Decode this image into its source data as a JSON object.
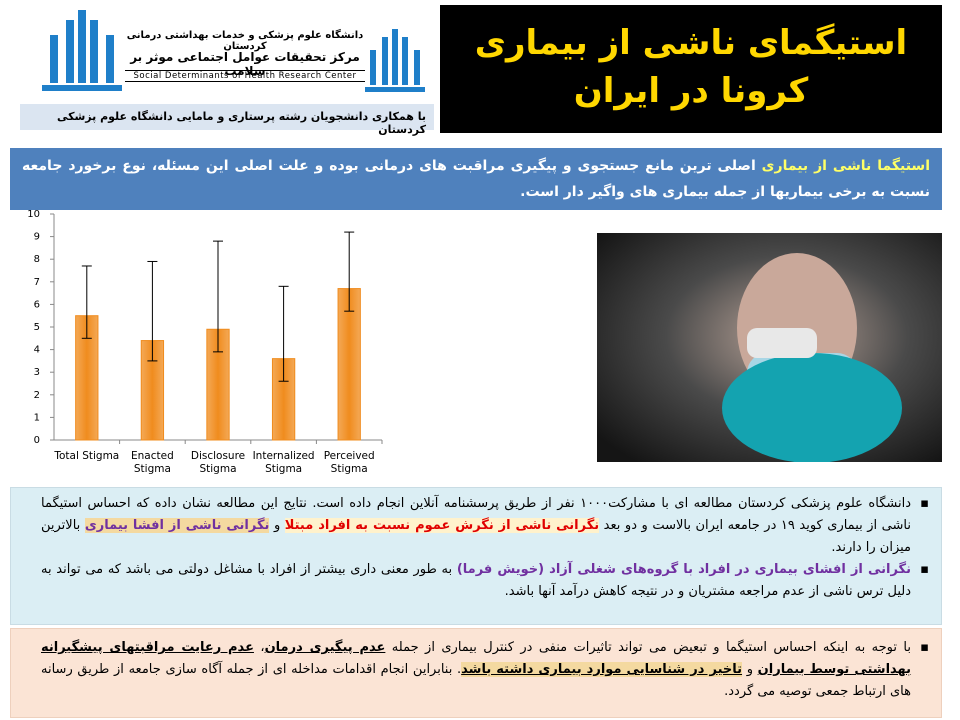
{
  "header": {
    "university": "دانشگاه علوم پزشکی و خدمات بهداشتی درمانی کردستان",
    "center_fa": "مرکز تحقیقات عوامل اجتماعی موثر بر سلامت",
    "center_en": "Social Determinants of Health Research Center",
    "collaboration": "با همکاری دانشجویان رشته پرستاری و مامایی دانشگاه علوم پزشکی کردستان",
    "title": "استیگمای ناشی از بیماری کرونا در ایران"
  },
  "intro": [
    "استیگما ناشی از بیماری",
    " اصلی ترین مانع جستجوی و پیگیری مراقبت های درمانی بوده و علت اصلی این مسئله، نوع برخورد جامعه نسبت به برخی بیماریها از جمله بیماری های واگیر دار است."
  ],
  "findings": [
    [
      "دانشگاه علوم پزشکی کردستان مطالعه ای با مشارکت۱۰۰۰ نفر از طریق پرسشنامه آنلاین انجام داده است. نتایج این مطالعه نشان داده که احساس استیگما ناشی از بیماری کوید ۱۹ در جامعه ایران بالاست و دو بعد ",
      "نگرانی ناشی از نگرش عموم نسبت به افراد مبتلا",
      " و ",
      "نگرانی ناشی از افشا بیماری",
      " بالاترین میزان را دارند."
    ],
    [
      "نگرانی از افشای بیماری در افراد با گروه‌های شغلی آزاد (خویش فرما)",
      " به طور معنی داری بیشتر از افراد با مشاغل دولتی می باشد که می تواند به دلیل ترس ناشی از عدم مراجعه مشتریان و در نتیجه کاهش درآمد آنها باشد."
    ]
  ],
  "recommendation": [
    "با توجه به اینکه احساس استیگما و تبعیض می تواند تاثیرات منفی در کنترل بیماری از جمله ",
    "عدم پیگیری درمان",
    "، ",
    "عدم رعایت مراقبتهای پیشگیرانه بهداشتی توسط بیماران",
    " و ",
    "تاخیر در شناسایی موارد بیماری داشته باشد",
    ". بنابراین انجام اقدامات مداخله ای از جمله آگاه سازی جامعه از طریق رسانه های ارتباط جمعی توصیه می گردد."
  ],
  "chart_data": {
    "type": "bar",
    "categories": [
      "Total Stigma",
      "Enacted Stigma",
      "Disclosure Stigma",
      "Internalized Stigma",
      "Perceived Stigma"
    ],
    "values": [
      5.5,
      4.4,
      4.9,
      3.6,
      6.7
    ],
    "error_plus": [
      2.2,
      3.5,
      3.9,
      3.2,
      2.5
    ],
    "error_minus": [
      1.0,
      0.9,
      1.0,
      1.0,
      1.0
    ],
    "color": "#f08c1e",
    "ylim": [
      0,
      10
    ],
    "yticks": [
      0,
      1,
      2,
      3,
      4,
      5,
      6,
      7,
      8,
      9,
      10
    ],
    "grid": false
  }
}
